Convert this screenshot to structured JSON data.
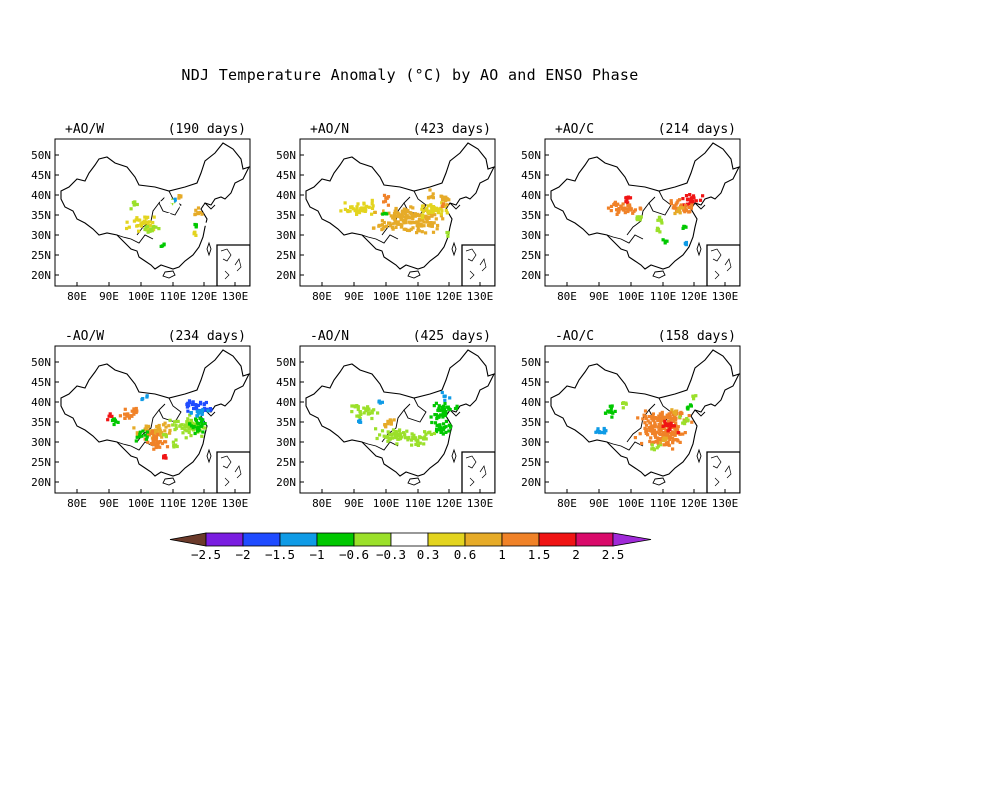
{
  "title": "NDJ Temperature Anomaly (°C) by AO and ENSO Phase",
  "colors": {
    "outline": "#000000",
    "scale": [
      "#6b3a2a",
      "#7a1de0",
      "#1f4bff",
      "#0f9be6",
      "#00c800",
      "#9be02a",
      "#ffffff",
      "#e3d41f",
      "#e6ab28",
      "#f08228",
      "#f01414",
      "#d90a6a",
      "#a02ad8"
    ]
  },
  "lat_ticks": [
    "50N",
    "45N",
    "40N",
    "35N",
    "30N",
    "25N",
    "20N"
  ],
  "lon_ticks": [
    "80E",
    "90E",
    "100E",
    "110E",
    "120E",
    "130E"
  ],
  "panels": [
    {
      "phase": "+AO/W",
      "days": "(190 days)",
      "regions": [
        [
          -15,
          -10,
          3,
          10,
          6
        ],
        [
          45,
          -10,
          10,
          8,
          6
        ],
        [
          12,
          8,
          10,
          5,
          6
        ],
        [
          35,
          20,
          10,
          4,
          6
        ],
        [
          -13,
          15,
          20,
          10,
          7
        ],
        [
          -5,
          20,
          10,
          8,
          5
        ],
        [
          -20,
          -4,
          6,
          6,
          5
        ],
        [
          17,
          -6,
          5,
          5,
          5
        ],
        [
          20,
          -10,
          4,
          3,
          3
        ],
        [
          42,
          15,
          3,
          8,
          4
        ],
        [
          8,
          35,
          4,
          3,
          4
        ],
        [
          55,
          13,
          6,
          6,
          6
        ],
        [
          50,
          20,
          6,
          6,
          6
        ],
        [
          15,
          -5,
          15,
          8,
          6
        ],
        [
          42,
          5,
          7,
          8,
          8
        ],
        [
          25,
          -12,
          3,
          2,
          8
        ],
        [
          40,
          25,
          3,
          4,
          7
        ]
      ]
    },
    {
      "phase": "+AO/N",
      "days": "(423 days)",
      "regions": [
        [
          -15,
          -10,
          5,
          10,
          9
        ],
        [
          -40,
          0,
          25,
          10,
          7
        ],
        [
          10,
          5,
          40,
          10,
          8
        ],
        [
          10,
          15,
          45,
          12,
          8
        ],
        [
          35,
          0,
          25,
          10,
          7
        ],
        [
          43,
          -5,
          3,
          6,
          9
        ],
        [
          30,
          -15,
          5,
          8,
          8
        ],
        [
          45,
          -10,
          8,
          8,
          8
        ],
        [
          -16,
          5,
          5,
          2,
          4
        ],
        [
          -20,
          0,
          2,
          4,
          6
        ],
        [
          48,
          25,
          3,
          3,
          5
        ],
        [
          30,
          15,
          5,
          4,
          8
        ]
      ]
    },
    {
      "phase": "+AO/C",
      "days": "(214 days)",
      "regions": [
        [
          -18,
          -10,
          5,
          10,
          10
        ],
        [
          45,
          -10,
          15,
          8,
          10
        ],
        [
          40,
          0,
          15,
          8,
          9
        ],
        [
          30,
          -5,
          8,
          8,
          9
        ],
        [
          -20,
          0,
          25,
          8,
          9
        ],
        [
          -5,
          10,
          6,
          6,
          5
        ],
        [
          15,
          10,
          6,
          6,
          5
        ],
        [
          15,
          20,
          8,
          4,
          5
        ],
        [
          20,
          32,
          5,
          3,
          4
        ],
        [
          40,
          18,
          3,
          3,
          4
        ],
        [
          35,
          0,
          6,
          8,
          8
        ],
        [
          -30,
          -5,
          3,
          3,
          9
        ],
        [
          40,
          35,
          3,
          3,
          3
        ]
      ]
    },
    {
      "phase": "-AO/W",
      "days": "(234 days)",
      "regions": [
        [
          35,
          10,
          25,
          14,
          5
        ],
        [
          42,
          -10,
          15,
          10,
          2
        ],
        [
          52,
          -5,
          10,
          10,
          2
        ],
        [
          45,
          0,
          12,
          10,
          3
        ],
        [
          45,
          10,
          15,
          12,
          4
        ],
        [
          -28,
          0,
          10,
          8,
          9
        ],
        [
          0,
          15,
          25,
          12,
          8
        ],
        [
          0,
          25,
          15,
          15,
          9
        ],
        [
          10,
          40,
          5,
          5,
          10
        ],
        [
          -10,
          -18,
          5,
          4,
          3
        ],
        [
          -40,
          5,
          8,
          6,
          4
        ],
        [
          -45,
          0,
          5,
          5,
          10
        ],
        [
          10,
          20,
          5,
          5,
          5
        ],
        [
          -12,
          20,
          8,
          8,
          4
        ],
        [
          20,
          28,
          6,
          6,
          5
        ],
        [
          -20,
          -5,
          8,
          6,
          9
        ]
      ]
    },
    {
      "phase": "-AO/N",
      "days": "(425 days)",
      "regions": [
        [
          -35,
          -5,
          20,
          10,
          5
        ],
        [
          45,
          -5,
          20,
          12,
          4
        ],
        [
          45,
          10,
          20,
          10,
          4
        ],
        [
          -5,
          20,
          25,
          10,
          5
        ],
        [
          20,
          22,
          20,
          10,
          5
        ],
        [
          -10,
          5,
          8,
          5,
          8
        ],
        [
          -15,
          10,
          8,
          4,
          8
        ],
        [
          -20,
          -15,
          4,
          4,
          3
        ],
        [
          -40,
          5,
          3,
          3,
          3
        ],
        [
          45,
          -20,
          6,
          6,
          3
        ],
        [
          40,
          0,
          5,
          5,
          4
        ]
      ]
    },
    {
      "phase": "-AO/C",
      "days": "(158 days)",
      "regions": [
        [
          15,
          15,
          30,
          25,
          9
        ],
        [
          25,
          0,
          30,
          10,
          9
        ],
        [
          20,
          20,
          20,
          15,
          9
        ],
        [
          25,
          10,
          10,
          10,
          10
        ],
        [
          -35,
          -5,
          10,
          8,
          4
        ],
        [
          -45,
          15,
          10,
          8,
          3
        ],
        [
          -20,
          -12,
          6,
          6,
          5
        ],
        [
          30,
          -5,
          6,
          6,
          8
        ],
        [
          45,
          -10,
          5,
          6,
          4
        ],
        [
          50,
          -20,
          4,
          4,
          5
        ],
        [
          10,
          30,
          8,
          5,
          5
        ],
        [
          40,
          5,
          8,
          5,
          5
        ],
        [
          20,
          25,
          6,
          6,
          8
        ]
      ]
    }
  ],
  "colorbar": {
    "labels": [
      "-2.5",
      "-2",
      "-1.5",
      "-1",
      "-0.6",
      "-0.3",
      "0.3",
      "0.6",
      "1",
      "1.5",
      "2",
      "2.5"
    ]
  }
}
